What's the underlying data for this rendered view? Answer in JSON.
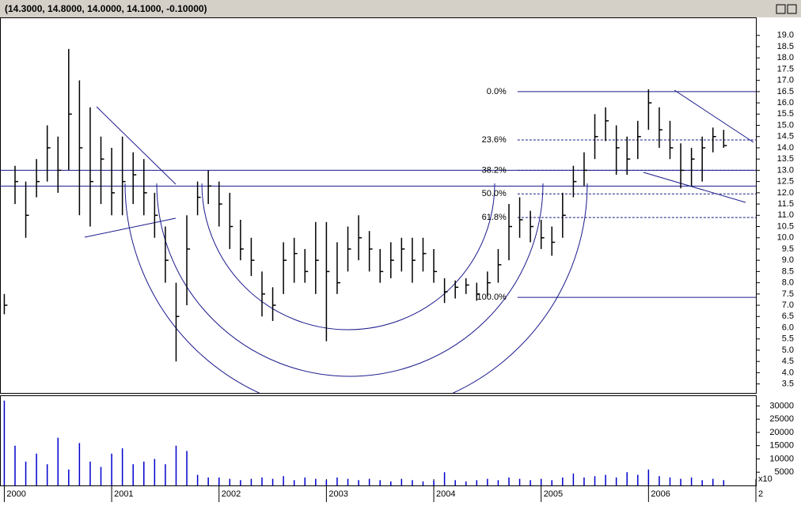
{
  "header": {
    "title": "(14.3000, 14.8000, 14.0000, 14.1000, -0.10000)"
  },
  "chart_data": {
    "type": "hlc",
    "color": "#000000",
    "x": [
      2000.0,
      2000.1,
      2000.2,
      2000.3,
      2000.4,
      2000.5,
      2000.6,
      2000.7,
      2000.8,
      2000.9,
      2001.0,
      2001.1,
      2001.2,
      2001.3,
      2001.4,
      2001.5,
      2001.6,
      2001.7,
      2001.8,
      2001.9,
      2002.0,
      2002.1,
      2002.2,
      2002.3,
      2002.4,
      2002.5,
      2002.6,
      2002.7,
      2002.8,
      2002.9,
      2003.0,
      2003.1,
      2003.2,
      2003.3,
      2003.4,
      2003.5,
      2003.6,
      2003.7,
      2003.8,
      2003.9,
      2004.0,
      2004.1,
      2004.2,
      2004.3,
      2004.4,
      2004.5,
      2004.6,
      2004.7,
      2004.8,
      2004.9,
      2005.0,
      2005.1,
      2005.2,
      2005.3,
      2005.4,
      2005.5,
      2005.6,
      2005.7,
      2005.8,
      2005.9,
      2006.0,
      2006.1,
      2006.2,
      2006.3,
      2006.4,
      2006.5,
      2006.6,
      2006.7
    ],
    "high": [
      7.5,
      13.2,
      12.5,
      13.5,
      15.0,
      14.5,
      18.4,
      17.0,
      15.8,
      14.5,
      14.0,
      14.5,
      13.8,
      13.5,
      12.0,
      10.5,
      8.0,
      11.0,
      12.5,
      13.0,
      12.5,
      12.0,
      10.8,
      10.0,
      8.5,
      7.8,
      9.8,
      10.0,
      9.5,
      10.7,
      10.7,
      9.8,
      10.5,
      11.0,
      10.3,
      9.5,
      9.8,
      10.0,
      10.0,
      10.0,
      9.5,
      8.2,
      8.1,
      8.2,
      8.0,
      8.5,
      9.5,
      11.5,
      11.8,
      11.2,
      10.8,
      10.5,
      12.0,
      13.2,
      13.8,
      15.5,
      15.8,
      15.0,
      14.5,
      15.2,
      16.6,
      15.8,
      15.2,
      14.2,
      14.0,
      14.5,
      14.9,
      14.8
    ],
    "low": [
      6.6,
      11.5,
      10.0,
      11.8,
      12.5,
      12.0,
      13.0,
      11.0,
      10.5,
      11.5,
      11.0,
      11.0,
      11.5,
      11.0,
      10.0,
      8.0,
      4.5,
      7.0,
      11.0,
      11.5,
      10.5,
      9.5,
      9.0,
      8.3,
      6.5,
      6.3,
      7.5,
      8.0,
      8.0,
      7.5,
      5.4,
      7.5,
      8.5,
      9.0,
      8.5,
      8.0,
      8.2,
      8.5,
      8.0,
      8.5,
      8.0,
      7.1,
      7.3,
      7.5,
      7.2,
      7.4,
      8.0,
      9.0,
      10.0,
      9.8,
      9.5,
      9.2,
      10.0,
      11.8,
      12.3,
      13.5,
      14.3,
      12.8,
      12.8,
      13.5,
      14.8,
      14.0,
      13.5,
      12.2,
      12.3,
      12.5,
      13.8,
      14.0
    ],
    "close": [
      7.0,
      12.5,
      11.0,
      12.5,
      14.0,
      13.0,
      15.5,
      14.0,
      12.5,
      13.5,
      12.0,
      12.5,
      12.8,
      12.0,
      11.0,
      9.0,
      6.5,
      9.5,
      11.8,
      12.3,
      11.5,
      10.5,
      9.5,
      9.0,
      7.5,
      7.0,
      9.0,
      9.3,
      8.5,
      9.0,
      8.5,
      8.0,
      9.5,
      10.0,
      9.5,
      8.5,
      9.0,
      9.5,
      9.0,
      9.3,
      8.5,
      7.6,
      7.8,
      7.9,
      7.5,
      8.0,
      8.8,
      10.5,
      10.8,
      10.5,
      10.0,
      9.8,
      11.0,
      12.5,
      13.0,
      14.5,
      15.2,
      14.0,
      13.5,
      14.5,
      16.0,
      14.8,
      14.0,
      13.0,
      13.5,
      14.0,
      14.5,
      14.1
    ],
    "xlim": [
      1999.96,
      2007.0
    ],
    "xticks": [
      2000,
      2001,
      2002,
      2003,
      2004,
      2005,
      2006,
      {
        "value": 2007,
        "label": "2"
      }
    ],
    "ylim": [
      3.1,
      19.8
    ],
    "yticks": [
      3.5,
      {
        "value": 4,
        "label": "4.0"
      },
      4.5,
      {
        "value": 5,
        "label": "5.0"
      },
      5.5,
      {
        "value": 6,
        "label": "6.0"
      },
      6.5,
      {
        "value": 7,
        "label": "7.0"
      },
      7.5,
      {
        "value": 8,
        "label": "8.0"
      },
      8.5,
      {
        "value": 9,
        "label": "9.0"
      },
      9.5,
      {
        "value": 10,
        "label": "10.0"
      },
      10.5,
      {
        "value": 11,
        "label": "11.0"
      },
      11.5,
      {
        "value": 12,
        "label": "12.0"
      },
      12.5,
      {
        "value": 13,
        "label": "13.0"
      },
      13.5,
      {
        "value": 14,
        "label": "14.0"
      },
      14.5,
      {
        "value": 15,
        "label": "15.0"
      },
      15.5,
      {
        "value": 16,
        "label": "16.0"
      },
      16.5,
      {
        "value": 17,
        "label": "17.0"
      },
      17.5,
      {
        "value": 18,
        "label": "18.0"
      },
      18.5,
      {
        "value": 19,
        "label": "19.0"
      }
    ],
    "hlines": {
      "values": [
        13.0,
        12.3
      ],
      "color": "#1a1a8c"
    },
    "fib": {
      "levels": [
        16.5,
        14.35,
        13.0,
        11.95,
        10.9,
        7.35
      ],
      "labels": [
        "0.0%",
        "23.6%",
        "38.2%",
        "50.0%",
        "61.8%",
        "100.0%"
      ],
      "dashed": [
        false,
        true,
        true,
        true,
        true,
        false
      ],
      "xrange": [
        2004.78,
        2007.0
      ],
      "color": "#1a1a8c"
    },
    "volume": {
      "values": [
        32000,
        15000,
        9000,
        12000,
        8000,
        18000,
        6000,
        16000,
        9000,
        7000,
        12000,
        14000,
        8000,
        9000,
        10000,
        8000,
        15000,
        13000,
        4000,
        3000,
        3000,
        2500,
        2000,
        2500,
        3000,
        2500,
        3500,
        2000,
        3000,
        2500,
        2000,
        3000,
        2500,
        2000,
        2500,
        2000,
        1500,
        2500,
        2000,
        1500,
        1800,
        5000,
        2000,
        1500,
        2000,
        2500,
        2000,
        3000,
        2500,
        2000,
        2500,
        2000,
        3000,
        4500,
        3000,
        3500,
        4000,
        3000,
        5000,
        4000,
        6000,
        3500,
        3000,
        2500,
        3000,
        2000,
        2500,
        2000
      ],
      "color": "#0000cc",
      "ylim": [
        0,
        34000
      ],
      "yticks": [
        5000,
        10000,
        15000,
        20000,
        25000,
        30000
      ],
      "unit_label": "x10"
    }
  }
}
